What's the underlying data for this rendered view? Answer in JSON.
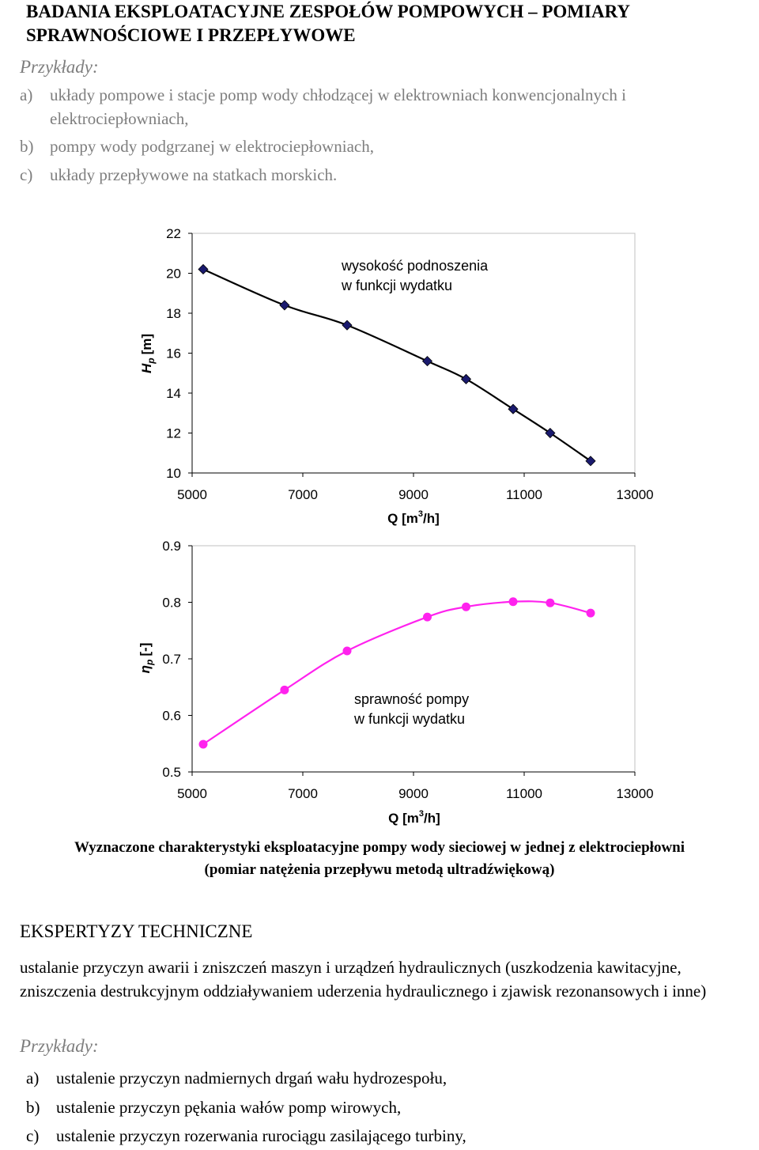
{
  "document": {
    "title_line1": "BADANIA EKSPLOATACYJNE ZESPOŁÓW POMPOWYCH – POMIARY",
    "title_line2": "SPRAWNOŚCIOWE I PRZEPŁYWOWE",
    "examples_label": "Przykłady:",
    "examples": [
      {
        "label": "a)",
        "line1": "układy pompowe i stacje pomp wody chłodzącej w elektrowniach konwencjonalnych i",
        "line2": "elektrociepłowniach,"
      },
      {
        "label": "b)",
        "line1": "pompy wody podgrzanej w elektrociepłowniach,"
      },
      {
        "label": "c)",
        "line1": "układy przepływowe na statkach morskich."
      }
    ],
    "caption_line1": "Wyznaczone charakterystyki eksploatacyjne pompy wody sieciowej w jednej z elektrociepłowni",
    "caption_line2": "(pomiar natężenia przepływu metodą ultradźwiękową)",
    "section_title": "EKSPERTYZY TECHNICZNE",
    "section_para": "ustalanie przyczyn awarii i zniszczeń maszyn i urządzeń hydraulicznych (uszkodzenia kawitacyjne, zniszczenia destrukcyjnym oddziaływaniem uderzenia hydraulicznego i zjawisk rezonansowych i inne)",
    "examples2_label": "Przykłady:",
    "examples2": [
      {
        "label": "a)",
        "text": "ustalenie przyczyn nadmiernych drgań wału hydrozespołu,"
      },
      {
        "label": "b)",
        "text": "ustalenie przyczyn pękania wałów pomp wirowych,"
      },
      {
        "label": "c)",
        "text": "ustalenie przyczyn rozerwania rurociągu zasilającego turbiny,"
      }
    ]
  },
  "chart_data": [
    {
      "type": "line",
      "annotation_line1": "wysokość podnoszenia",
      "annotation_line2": "w funkcji wydatku",
      "ylabel": "H",
      "ylabel_sub": "p",
      "ylabel_unit": "[m]",
      "xlabel_text": "Q [m",
      "xlabel_sup": "3",
      "xlabel_end": "/h]",
      "xlim": [
        5000,
        13000
      ],
      "ylim": [
        10,
        22
      ],
      "xticks": [
        "5000",
        "7000",
        "9000",
        "11000",
        "13000"
      ],
      "yticks": [
        "10",
        "12",
        "14",
        "16",
        "18",
        "20",
        "22"
      ],
      "grid": false,
      "color": "#1a1a6e",
      "marker": "diamond",
      "series": [
        {
          "x": [
            5200,
            6670,
            7800,
            9250,
            9950,
            10800,
            11470,
            12200
          ],
          "y": [
            20.2,
            18.4,
            17.4,
            15.6,
            14.7,
            13.2,
            12.0,
            10.6
          ]
        }
      ]
    },
    {
      "type": "line",
      "annotation_line1": "sprawność pompy",
      "annotation_line2": "w funkcji wydatku",
      "ylabel": "η",
      "ylabel_sub": "p",
      "ylabel_unit": "[-]",
      "xlabel_text": "Q [m",
      "xlabel_sup": "3",
      "xlabel_end": "/h]",
      "xlim": [
        5000,
        13000
      ],
      "ylim": [
        0.5,
        0.9
      ],
      "xticks": [
        "5000",
        "7000",
        "9000",
        "11000",
        "13000"
      ],
      "yticks": [
        "0.5",
        "0.6",
        "0.7",
        "0.8",
        "0.9"
      ],
      "grid": false,
      "color": "#ff22ee",
      "marker": "circle",
      "series": [
        {
          "x": [
            5200,
            6670,
            7800,
            9250,
            9950,
            10800,
            11470,
            12200
          ],
          "y": [
            0.549,
            0.645,
            0.714,
            0.774,
            0.792,
            0.801,
            0.799,
            0.781
          ]
        }
      ]
    }
  ]
}
